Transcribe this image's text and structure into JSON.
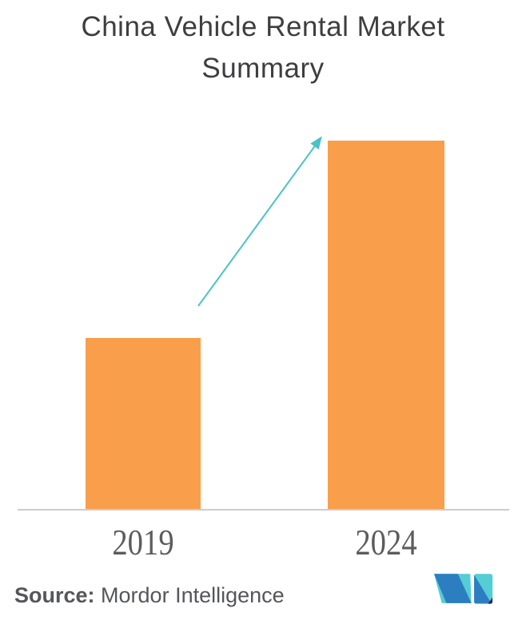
{
  "page": {
    "background": "#FFFFFF"
  },
  "header": {
    "title_lines": [
      "China Vehicle Rental Market",
      "Summary"
    ]
  },
  "chart_data": {
    "type": "bar",
    "title": "China Vehicle Rental Market Summary",
    "categories": [
      "2019",
      "2024"
    ],
    "values": [
      46.5,
      100
    ],
    "value_scale": "relative bar height percent; no numeric axis or data labels shown",
    "ylim": [
      0,
      100
    ],
    "xlabel": "",
    "ylabel": "",
    "grid": false,
    "legend": false,
    "bar_color": "#F99F4B",
    "annotations": [
      {
        "type": "growth-arrow",
        "description": "teal arrow pointing up from 2019 bar toward top of 2024 bar",
        "color": "#4AC2C6"
      }
    ]
  },
  "footer": {
    "source_label": "Source:",
    "source_text": "Mordor Intelligence",
    "logo_name": "mordor-intelligence-logo"
  },
  "colors": {
    "bar_color": "#F99F4B",
    "arrow_color": "#4AC2C6",
    "title_color": "#3E3E40",
    "axis_color": "#CDCDCD",
    "tick_color": "#5C5C5E",
    "source_color": "#55565A",
    "logo_blue": "#2C7EC0",
    "logo_teal": "#55CDD4",
    "logo_navy": "#21295C",
    "page_bg": "#FFFFFF"
  }
}
